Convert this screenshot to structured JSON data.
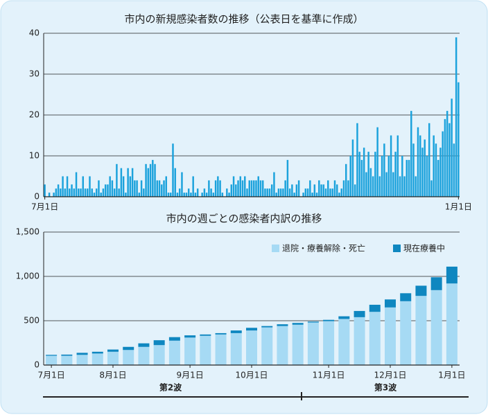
{
  "chart_data": [
    {
      "type": "bar",
      "title": "市内の新規感染者数の推移（公表日を基準に作成）",
      "color": "#1ba2dc",
      "categories": [
        "7月1日",
        null,
        null,
        null,
        null,
        null,
        null,
        null,
        null,
        null,
        null,
        null,
        null,
        null,
        null,
        null,
        null,
        null,
        null,
        null,
        null,
        null,
        null,
        null,
        null,
        null,
        null,
        null,
        null,
        null,
        null,
        null,
        null,
        null,
        null,
        null,
        null,
        null,
        null,
        null,
        null,
        null,
        null,
        null,
        null,
        null,
        null,
        null,
        null,
        null,
        null,
        null,
        null,
        null,
        null,
        null,
        null,
        null,
        null,
        null,
        null,
        null,
        null,
        null,
        null,
        null,
        null,
        null,
        null,
        null,
        null,
        null,
        null,
        null,
        null,
        null,
        null,
        null,
        null,
        null,
        null,
        null,
        null,
        null,
        null,
        null,
        null,
        null,
        null,
        null,
        null,
        null,
        null,
        null,
        null,
        null,
        null,
        null,
        null,
        null,
        null,
        null,
        null,
        null,
        null,
        null,
        null,
        null,
        null,
        null,
        null,
        null,
        null,
        null,
        null,
        null,
        null,
        null,
        null,
        null,
        null,
        null,
        null,
        null,
        null,
        null,
        null,
        null,
        null,
        null,
        null,
        null,
        null,
        null,
        null,
        null,
        null,
        null,
        null,
        null,
        null,
        null,
        null,
        null,
        null,
        null,
        null,
        null,
        null,
        null,
        null,
        null,
        null,
        null,
        null,
        null,
        null,
        null,
        null,
        null,
        null,
        null,
        null,
        null,
        null,
        null,
        null,
        null,
        null,
        null,
        null,
        null,
        null,
        null,
        null,
        null,
        null,
        null,
        null,
        null,
        null,
        null,
        null,
        null,
        "1月1日"
      ],
      "values": [
        3,
        0,
        1,
        0,
        1,
        2,
        3,
        2,
        5,
        2,
        5,
        2,
        3,
        2,
        6,
        2,
        2,
        5,
        2,
        2,
        5,
        2,
        1,
        2,
        4,
        1,
        2,
        3,
        3,
        5,
        4,
        2,
        8,
        2,
        7,
        5,
        1,
        7,
        5,
        7,
        4,
        4,
        1,
        4,
        2,
        8,
        7,
        8,
        9,
        8,
        4,
        4,
        3,
        4,
        5,
        1,
        1,
        13,
        7,
        1,
        2,
        6,
        1,
        1,
        2,
        1,
        5,
        1,
        2,
        0,
        1,
        2,
        1,
        4,
        2,
        1,
        4,
        5,
        4,
        1,
        0,
        2,
        1,
        3,
        5,
        3,
        4,
        5,
        4,
        5,
        2,
        4,
        4,
        4,
        4,
        5,
        4,
        4,
        2,
        2,
        2,
        3,
        6,
        1,
        2,
        2,
        2,
        4,
        9,
        2,
        3,
        1,
        3,
        4,
        0,
        1,
        2,
        2,
        4,
        1,
        3,
        1,
        4,
        3,
        3,
        2,
        4,
        2,
        2,
        4,
        3,
        1,
        2,
        4,
        8,
        4,
        10,
        14,
        3,
        18,
        11,
        9,
        12,
        6,
        11,
        7,
        5,
        11,
        17,
        5,
        10,
        13,
        6,
        10,
        15,
        6,
        11,
        15,
        5,
        10,
        5,
        9,
        9,
        21,
        13,
        5,
        17,
        15,
        12,
        14,
        10,
        18,
        4,
        15,
        13,
        9,
        12,
        16,
        19,
        21,
        18,
        24,
        13,
        39,
        28
      ],
      "ylim": [
        0,
        40
      ],
      "yticks": [
        0,
        10,
        20,
        30,
        40
      ],
      "grid": true
    },
    {
      "type": "stacked_bar",
      "title": "市内の週ごとの感染者内訳の推移",
      "categories": [
        "7月1日",
        null,
        null,
        null,
        "8月1日",
        null,
        null,
        null,
        null,
        "9月1日",
        null,
        null,
        null,
        "10月1日",
        null,
        null,
        null,
        null,
        "11月1日",
        null,
        null,
        null,
        "12月1日",
        null,
        null,
        null,
        "1月1日"
      ],
      "series": [
        {
          "name": "退院・療養解除・死亡",
          "color": "#a6daf4",
          "values": [
            105,
            105,
            115,
            130,
            150,
            170,
            205,
            225,
            275,
            310,
            330,
            345,
            360,
            390,
            425,
            440,
            455,
            480,
            495,
            520,
            540,
            600,
            650,
            720,
            780,
            845,
            920
          ]
        },
        {
          "name": "現在療養中",
          "color": "#0f87c0",
          "values": [
            10,
            13,
            23,
            20,
            25,
            35,
            40,
            55,
            40,
            25,
            15,
            15,
            30,
            30,
            15,
            20,
            20,
            10,
            15,
            30,
            70,
            80,
            90,
            90,
            115,
            145,
            190
          ]
        }
      ],
      "ylim": [
        0,
        1500
      ],
      "yticks": [
        0,
        500,
        {
          "value": 1000,
          "label": "1,000"
        },
        {
          "value": 1500,
          "label": "1,500"
        }
      ],
      "grid": true,
      "annotations": [
        "第2波",
        "第3波"
      ]
    }
  ]
}
